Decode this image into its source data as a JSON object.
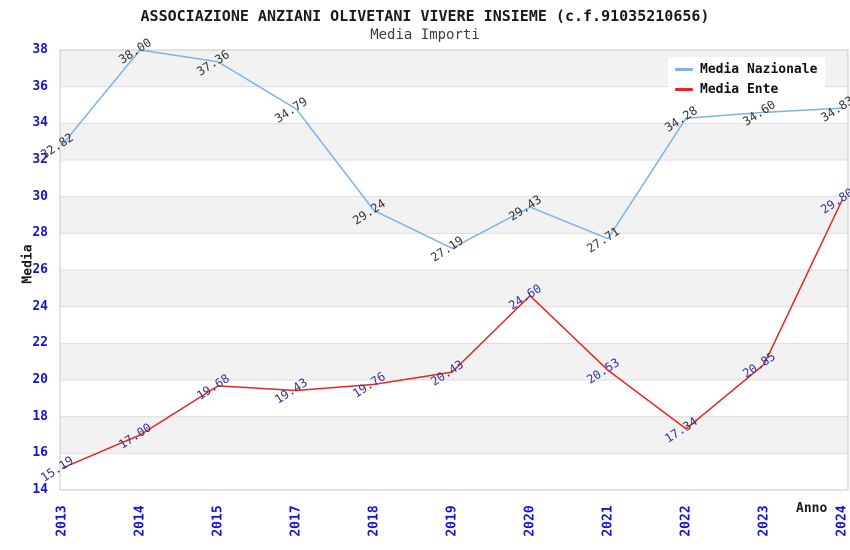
{
  "chart_data": {
    "type": "line",
    "title": "ASSOCIAZIONE ANZIANI OLIVETANI VIVERE INSIEME (c.f.91035210656)",
    "subtitle": "Media Importi",
    "xlabel": "Anno",
    "ylabel": "Media",
    "categories": [
      "2013",
      "2014",
      "2015",
      "2017",
      "2018",
      "2019",
      "2020",
      "2021",
      "2022",
      "2023",
      "2024"
    ],
    "series": [
      {
        "name": "Media Nazionale",
        "color": "#7CB2E8",
        "label_color": "#333333",
        "values": [
          32.82,
          38.0,
          37.36,
          34.79,
          29.24,
          27.19,
          29.43,
          27.71,
          34.28,
          34.6,
          34.83
        ]
      },
      {
        "name": "Media Ente",
        "color": "#E8261E",
        "label_color": "#333399",
        "values": [
          15.19,
          17.0,
          19.68,
          19.43,
          19.76,
          20.43,
          24.6,
          20.53,
          17.34,
          20.85,
          29.8
        ]
      }
    ],
    "ylim": [
      14,
      38
    ],
    "ytick_step": 2,
    "yticks": [
      14,
      16,
      18,
      20,
      22,
      24,
      26,
      28,
      30,
      32,
      34,
      36,
      38
    ],
    "grid": "horizontal-bands",
    "legend_position": "top-right"
  },
  "colors": {
    "tick_label": "#1515CD",
    "band_gray": "#F2F2F2",
    "band_white": "#FFFFFF",
    "gridline": "#DEDEDE",
    "plot_border": "#C8C8C8",
    "title_text": "#1A1A1A"
  }
}
